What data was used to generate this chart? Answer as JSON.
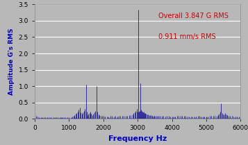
{
  "title": "",
  "xlabel": "Frequency Hz",
  "ylabel": "Amplitude G's RMS",
  "xlim": [
    0,
    6000
  ],
  "ylim": [
    0,
    3.5
  ],
  "yticks": [
    0.0,
    0.5,
    1.0,
    1.5,
    2.0,
    2.5,
    3.0,
    3.5
  ],
  "xticks": [
    0,
    1000,
    2000,
    3000,
    4000,
    5000,
    6000
  ],
  "annotation1": "Overall 3.847 G RMS",
  "annotation2": "0.911 mm/s RMS",
  "annotation_color": "#cc0000",
  "line_color": "#1a1a99",
  "background_color": "#b8b8b8",
  "xlabel_color": "#0000cc",
  "ylabel_color": "#0000cc",
  "grid_color": "#ffffff",
  "figsize": [
    3.57,
    2.09
  ],
  "dpi": 100,
  "peaks": [
    {
      "freq": 50,
      "amp": 0.09
    },
    {
      "freq": 90,
      "amp": 0.07
    },
    {
      "freq": 130,
      "amp": 0.06
    },
    {
      "freq": 180,
      "amp": 0.05
    },
    {
      "freq": 220,
      "amp": 0.05
    },
    {
      "freq": 270,
      "amp": 0.05
    },
    {
      "freq": 310,
      "amp": 0.05
    },
    {
      "freq": 360,
      "amp": 0.05
    },
    {
      "freq": 400,
      "amp": 0.05
    },
    {
      "freq": 450,
      "amp": 0.05
    },
    {
      "freq": 490,
      "amp": 0.05
    },
    {
      "freq": 540,
      "amp": 0.05
    },
    {
      "freq": 580,
      "amp": 0.05
    },
    {
      "freq": 630,
      "amp": 0.05
    },
    {
      "freq": 670,
      "amp": 0.05
    },
    {
      "freq": 720,
      "amp": 0.05
    },
    {
      "freq": 760,
      "amp": 0.05
    },
    {
      "freq": 810,
      "amp": 0.05
    },
    {
      "freq": 850,
      "amp": 0.05
    },
    {
      "freq": 900,
      "amp": 0.05
    },
    {
      "freq": 950,
      "amp": 0.05
    },
    {
      "freq": 1000,
      "amp": 0.06
    },
    {
      "freq": 1050,
      "amp": 0.06
    },
    {
      "freq": 1100,
      "amp": 0.07
    },
    {
      "freq": 1130,
      "amp": 0.09
    },
    {
      "freq": 1160,
      "amp": 0.12
    },
    {
      "freq": 1190,
      "amp": 0.15
    },
    {
      "freq": 1220,
      "amp": 0.18
    },
    {
      "freq": 1250,
      "amp": 0.22
    },
    {
      "freq": 1280,
      "amp": 0.28
    },
    {
      "freq": 1310,
      "amp": 0.35
    },
    {
      "freq": 1340,
      "amp": 0.2
    },
    {
      "freq": 1370,
      "amp": 0.15
    },
    {
      "freq": 1400,
      "amp": 0.2
    },
    {
      "freq": 1430,
      "amp": 0.25
    },
    {
      "freq": 1460,
      "amp": 0.3
    },
    {
      "freq": 1490,
      "amp": 1.05
    },
    {
      "freq": 1510,
      "amp": 0.22
    },
    {
      "freq": 1530,
      "amp": 0.12
    },
    {
      "freq": 1560,
      "amp": 0.15
    },
    {
      "freq": 1590,
      "amp": 0.18
    },
    {
      "freq": 1620,
      "amp": 0.22
    },
    {
      "freq": 1650,
      "amp": 0.15
    },
    {
      "freq": 1680,
      "amp": 0.12
    },
    {
      "freq": 1710,
      "amp": 0.16
    },
    {
      "freq": 1740,
      "amp": 0.2
    },
    {
      "freq": 1770,
      "amp": 0.25
    },
    {
      "freq": 1800,
      "amp": 1.0
    },
    {
      "freq": 1830,
      "amp": 0.22
    },
    {
      "freq": 1860,
      "amp": 0.14
    },
    {
      "freq": 1890,
      "amp": 0.12
    },
    {
      "freq": 1920,
      "amp": 0.1
    },
    {
      "freq": 1960,
      "amp": 0.09
    },
    {
      "freq": 2000,
      "amp": 0.09
    },
    {
      "freq": 2050,
      "amp": 0.08
    },
    {
      "freq": 2100,
      "amp": 0.08
    },
    {
      "freq": 2150,
      "amp": 0.08
    },
    {
      "freq": 2200,
      "amp": 0.09
    },
    {
      "freq": 2250,
      "amp": 0.09
    },
    {
      "freq": 2300,
      "amp": 0.08
    },
    {
      "freq": 2350,
      "amp": 0.09
    },
    {
      "freq": 2400,
      "amp": 0.08
    },
    {
      "freq": 2450,
      "amp": 0.09
    },
    {
      "freq": 2500,
      "amp": 0.09
    },
    {
      "freq": 2550,
      "amp": 0.09
    },
    {
      "freq": 2600,
      "amp": 0.09
    },
    {
      "freq": 2650,
      "amp": 0.09
    },
    {
      "freq": 2700,
      "amp": 0.1
    },
    {
      "freq": 2750,
      "amp": 0.11
    },
    {
      "freq": 2800,
      "amp": 0.12
    },
    {
      "freq": 2850,
      "amp": 0.14
    },
    {
      "freq": 2880,
      "amp": 0.17
    },
    {
      "freq": 2910,
      "amp": 0.2
    },
    {
      "freq": 2940,
      "amp": 0.25
    },
    {
      "freq": 2970,
      "amp": 0.3
    },
    {
      "freq": 3000,
      "amp": 0.22
    },
    {
      "freq": 3020,
      "amp": 3.33
    },
    {
      "freq": 3040,
      "amp": 0.22
    },
    {
      "freq": 3060,
      "amp": 0.25
    },
    {
      "freq": 3080,
      "amp": 1.08
    },
    {
      "freq": 3100,
      "amp": 0.28
    },
    {
      "freq": 3120,
      "amp": 0.25
    },
    {
      "freq": 3140,
      "amp": 0.22
    },
    {
      "freq": 3160,
      "amp": 0.2
    },
    {
      "freq": 3180,
      "amp": 0.22
    },
    {
      "freq": 3200,
      "amp": 0.18
    },
    {
      "freq": 3220,
      "amp": 0.17
    },
    {
      "freq": 3250,
      "amp": 0.15
    },
    {
      "freq": 3280,
      "amp": 0.14
    },
    {
      "freq": 3310,
      "amp": 0.13
    },
    {
      "freq": 3340,
      "amp": 0.12
    },
    {
      "freq": 3370,
      "amp": 0.12
    },
    {
      "freq": 3400,
      "amp": 0.11
    },
    {
      "freq": 3430,
      "amp": 0.1
    },
    {
      "freq": 3460,
      "amp": 0.1
    },
    {
      "freq": 3490,
      "amp": 0.09
    },
    {
      "freq": 3530,
      "amp": 0.09
    },
    {
      "freq": 3570,
      "amp": 0.09
    },
    {
      "freq": 3610,
      "amp": 0.09
    },
    {
      "freq": 3650,
      "amp": 0.09
    },
    {
      "freq": 3700,
      "amp": 0.09
    },
    {
      "freq": 3750,
      "amp": 0.09
    },
    {
      "freq": 3800,
      "amp": 0.08
    },
    {
      "freq": 3850,
      "amp": 0.09
    },
    {
      "freq": 3900,
      "amp": 0.09
    },
    {
      "freq": 3950,
      "amp": 0.08
    },
    {
      "freq": 4000,
      "amp": 0.08
    },
    {
      "freq": 4050,
      "amp": 0.08
    },
    {
      "freq": 4100,
      "amp": 0.08
    },
    {
      "freq": 4150,
      "amp": 0.09
    },
    {
      "freq": 4200,
      "amp": 0.09
    },
    {
      "freq": 4250,
      "amp": 0.1
    },
    {
      "freq": 4300,
      "amp": 0.1
    },
    {
      "freq": 4350,
      "amp": 0.09
    },
    {
      "freq": 4400,
      "amp": 0.09
    },
    {
      "freq": 4450,
      "amp": 0.08
    },
    {
      "freq": 4500,
      "amp": 0.08
    },
    {
      "freq": 4550,
      "amp": 0.08
    },
    {
      "freq": 4600,
      "amp": 0.08
    },
    {
      "freq": 4650,
      "amp": 0.08
    },
    {
      "freq": 4700,
      "amp": 0.08
    },
    {
      "freq": 4750,
      "amp": 0.09
    },
    {
      "freq": 4800,
      "amp": 0.09
    },
    {
      "freq": 4850,
      "amp": 0.08
    },
    {
      "freq": 4900,
      "amp": 0.08
    },
    {
      "freq": 4950,
      "amp": 0.08
    },
    {
      "freq": 5000,
      "amp": 0.08
    },
    {
      "freq": 5050,
      "amp": 0.08
    },
    {
      "freq": 5100,
      "amp": 0.09
    },
    {
      "freq": 5150,
      "amp": 0.09
    },
    {
      "freq": 5200,
      "amp": 0.09
    },
    {
      "freq": 5250,
      "amp": 0.09
    },
    {
      "freq": 5300,
      "amp": 0.1
    },
    {
      "freq": 5340,
      "amp": 0.12
    },
    {
      "freq": 5370,
      "amp": 0.16
    },
    {
      "freq": 5400,
      "amp": 0.22
    },
    {
      "freq": 5430,
      "amp": 0.48
    },
    {
      "freq": 5460,
      "amp": 0.18
    },
    {
      "freq": 5490,
      "amp": 0.13
    },
    {
      "freq": 5520,
      "amp": 0.14
    },
    {
      "freq": 5550,
      "amp": 0.18
    },
    {
      "freq": 5580,
      "amp": 0.13
    },
    {
      "freq": 5610,
      "amp": 0.11
    },
    {
      "freq": 5650,
      "amp": 0.1
    },
    {
      "freq": 5700,
      "amp": 0.09
    },
    {
      "freq": 5750,
      "amp": 0.09
    },
    {
      "freq": 5800,
      "amp": 0.08
    },
    {
      "freq": 5850,
      "amp": 0.08
    },
    {
      "freq": 5900,
      "amp": 0.08
    },
    {
      "freq": 5950,
      "amp": 0.08
    },
    {
      "freq": 6000,
      "amp": 0.07
    }
  ]
}
